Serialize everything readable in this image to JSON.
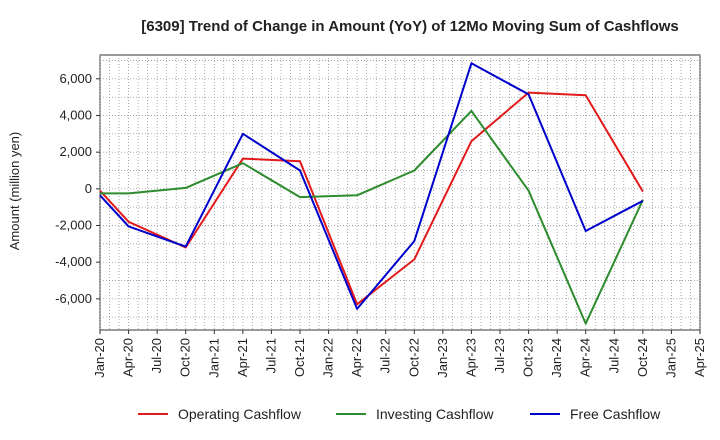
{
  "chart_data": {
    "type": "line",
    "title": "[6309]  Trend of Change in Amount (YoY) of 12Mo Moving Sum of Cashflows",
    "xlabel": "",
    "ylabel": "Amount (million yen)",
    "categories": [
      "Jan-20",
      "Apr-20",
      "Jul-20",
      "Oct-20",
      "Jan-21",
      "Apr-21",
      "Jul-21",
      "Oct-21",
      "Jan-22",
      "Apr-22",
      "Jul-22",
      "Oct-22",
      "Jan-23",
      "Apr-23",
      "Jul-23",
      "Oct-23",
      "Jan-24",
      "Apr-24",
      "Jul-24",
      "Oct-24",
      "Jan-25",
      "Apr-25"
    ],
    "ylim": [
      -7700,
      7300
    ],
    "yticks": [
      -6000,
      -4000,
      -2000,
      0,
      2000,
      4000,
      6000
    ],
    "ytick_labels": [
      "-6,000",
      "-4,000",
      "-2,000",
      "0",
      "2,000",
      "4,000",
      "6,000"
    ],
    "grid": true,
    "legend_position": "bottom",
    "series": [
      {
        "name": "Operating Cashflow",
        "color": "#e31a1c",
        "values": [
          -100,
          -1800,
          null,
          -3200,
          null,
          1650,
          null,
          1500,
          null,
          -6300,
          null,
          -3850,
          null,
          2600,
          null,
          5250,
          null,
          5100,
          null,
          -150,
          null,
          null
        ]
      },
      {
        "name": "Investing Cashflow",
        "color": "#2e8b2e",
        "values": [
          -250,
          -250,
          null,
          50,
          null,
          1400,
          null,
          -450,
          null,
          -350,
          null,
          1000,
          null,
          4250,
          null,
          -100,
          null,
          -7350,
          null,
          -600,
          null,
          null
        ]
      },
      {
        "name": "Free Cashflow",
        "color": "#0000cc",
        "values": [
          -350,
          -2050,
          null,
          -3150,
          null,
          3000,
          null,
          1000,
          null,
          -6550,
          null,
          -2850,
          null,
          6850,
          null,
          5150,
          null,
          -2300,
          null,
          -650,
          null,
          null
        ]
      }
    ]
  }
}
